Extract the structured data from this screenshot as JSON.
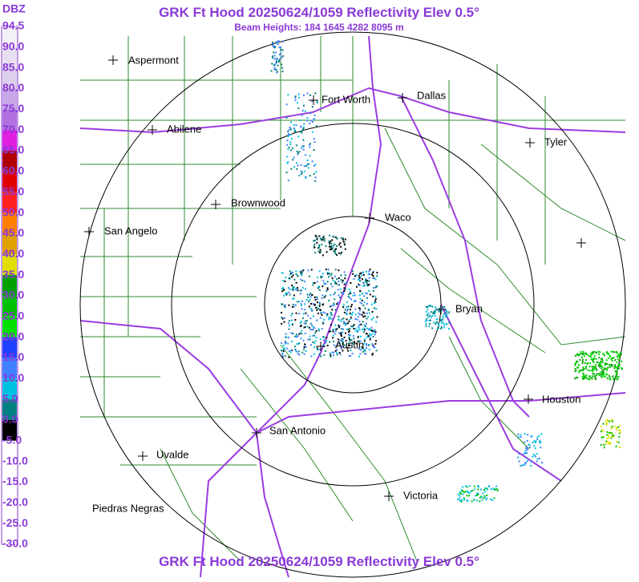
{
  "header": {
    "title": "GRK Ft Hood 20250624/1059 Reflectivity Elev 0.5°",
    "subtitle": "Beam Heights: 184 1645 4282 8095 m"
  },
  "footer": {
    "title": "GRK Ft Hood 20250624/1059 Reflectivity Elev 0.5°"
  },
  "legend": {
    "unit": "DBZ",
    "labels": [
      "94.5",
      "90.0",
      "85.0",
      "80.0",
      "75.0",
      "70.0",
      "65.0",
      "60.0",
      "55.0",
      "50.0",
      "45.0",
      "40.0",
      "35.0",
      "30.0",
      "25.0",
      "20.0",
      "15.0",
      "10.0",
      "5.0",
      "0.0",
      "-5.0",
      "-10.0",
      "-15.0",
      "-20.0",
      "-25.0",
      "-30.0"
    ]
  },
  "cities": [
    "Aspermont",
    "Fort Worth",
    "Dallas",
    "Abilene",
    "Tyler",
    "Brownwood",
    "Waco",
    "San Angelo",
    "Bryan",
    "Austin",
    "Houston",
    "San Antonio",
    "Uvalde",
    "Victoria",
    "Piedras Negras"
  ]
}
